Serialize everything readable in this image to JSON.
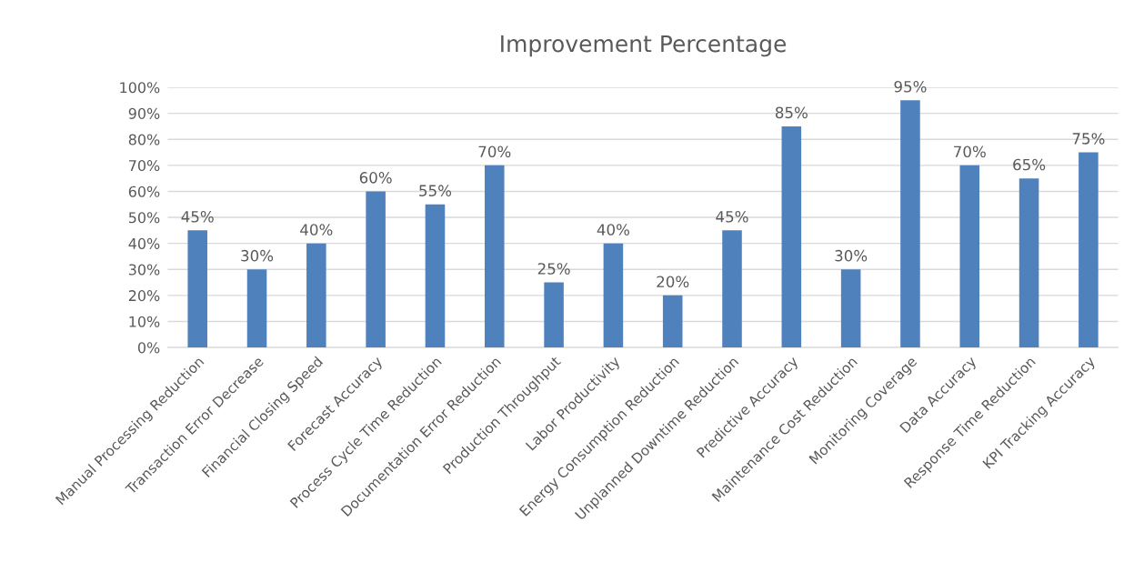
{
  "chart_data": {
    "type": "bar",
    "title": "Improvement Percentage",
    "categories": [
      "Manual Processing Reduction",
      "Transaction Error Decrease",
      "Financial Closing Speed",
      "Forecast Accuracy",
      "Process Cycle Time Reduction",
      "Documentation Error Reduction",
      "Production Throughput",
      "Labor Productivity",
      "Energy Consumption Reduction",
      "Unplanned Downtime Reduction",
      "Predictive Accuracy",
      "Maintenance Cost Reduction",
      "Monitoring Coverage",
      "Data Accuracy",
      "Response Time Reduction",
      "KPI Tracking Accuracy"
    ],
    "values": [
      45,
      30,
      40,
      60,
      55,
      70,
      25,
      40,
      20,
      45,
      85,
      30,
      95,
      70,
      65,
      75
    ],
    "value_labels": [
      "45%",
      "30%",
      "40%",
      "60%",
      "55%",
      "70%",
      "25%",
      "40%",
      "20%",
      "45%",
      "85%",
      "30%",
      "95%",
      "70%",
      "65%",
      "75%"
    ],
    "color": "#4f81bd",
    "ylim": [
      0,
      100
    ],
    "yticks": [
      {
        "value": 0,
        "label": "0%"
      },
      {
        "value": 10,
        "label": "10%"
      },
      {
        "value": 20,
        "label": "20%"
      },
      {
        "value": 30,
        "label": "30%"
      },
      {
        "value": 40,
        "label": "40%"
      },
      {
        "value": 50,
        "label": "50%"
      },
      {
        "value": 60,
        "label": "60%"
      },
      {
        "value": 70,
        "label": "70%"
      },
      {
        "value": 80,
        "label": "80%"
      },
      {
        "value": 90,
        "label": "90%"
      },
      {
        "value": 100,
        "label": "100%"
      }
    ],
    "grid": "y"
  }
}
